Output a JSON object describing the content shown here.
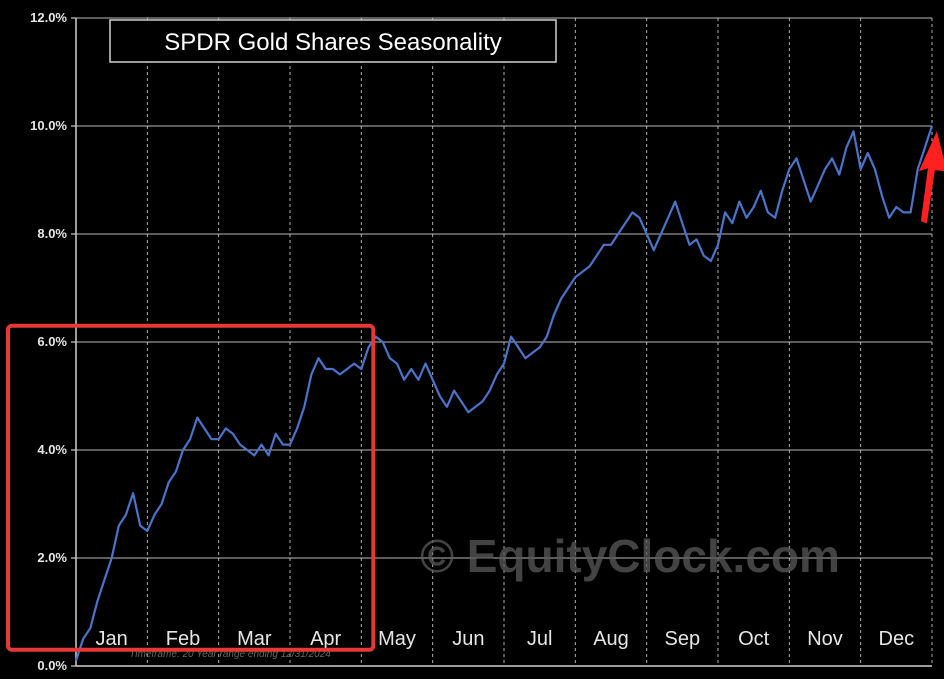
{
  "chart_data": {
    "type": "line",
    "title": "SPDR Gold Shares Seasonality",
    "watermark": "© EquityClock.com",
    "footer_note": "Timeframe: 20 Year range ending 12/31/2024",
    "colors": {
      "line": "#4a73c9",
      "highlight": "#e53935",
      "arrow": "#ff2020",
      "grid": "#cfcfcf",
      "background": "#000000"
    },
    "grid": true,
    "ylim": [
      0,
      12
    ],
    "y_ticks": [
      {
        "value": 0,
        "label": "0.0%"
      },
      {
        "value": 2,
        "label": "2.0%"
      },
      {
        "value": 4,
        "label": "4.0%"
      },
      {
        "value": 6,
        "label": "6.0%"
      },
      {
        "value": 8,
        "label": "8.0%"
      },
      {
        "value": 10,
        "label": "10.0%"
      },
      {
        "value": 12,
        "label": "12.0%"
      }
    ],
    "months": [
      "Jan",
      "Feb",
      "Mar",
      "Apr",
      "May",
      "Jun",
      "Jul",
      "Aug",
      "Sep",
      "Oct",
      "Nov",
      "Dec"
    ],
    "highlight_range": {
      "x_start": 0,
      "x_end": 4,
      "y_start": 0.3,
      "y_end": 6.3
    },
    "arrow": {
      "x": 11.9,
      "y": 8.7
    },
    "series": [
      {
        "points": [
          [
            0.0,
            0.1
          ],
          [
            0.1,
            0.5
          ],
          [
            0.2,
            0.7
          ],
          [
            0.3,
            1.2
          ],
          [
            0.4,
            1.6
          ],
          [
            0.5,
            2.0
          ],
          [
            0.6,
            2.6
          ],
          [
            0.7,
            2.8
          ],
          [
            0.8,
            3.2
          ],
          [
            0.9,
            2.6
          ],
          [
            1.0,
            2.5
          ],
          [
            1.1,
            2.8
          ],
          [
            1.2,
            3.0
          ],
          [
            1.3,
            3.4
          ],
          [
            1.4,
            3.6
          ],
          [
            1.5,
            4.0
          ],
          [
            1.6,
            4.2
          ],
          [
            1.7,
            4.6
          ],
          [
            1.8,
            4.4
          ],
          [
            1.9,
            4.2
          ],
          [
            2.0,
            4.2
          ],
          [
            2.1,
            4.4
          ],
          [
            2.2,
            4.3
          ],
          [
            2.3,
            4.1
          ],
          [
            2.4,
            4.0
          ],
          [
            2.5,
            3.9
          ],
          [
            2.6,
            4.1
          ],
          [
            2.7,
            3.9
          ],
          [
            2.8,
            4.3
          ],
          [
            2.9,
            4.1
          ],
          [
            3.0,
            4.1
          ],
          [
            3.1,
            4.4
          ],
          [
            3.2,
            4.8
          ],
          [
            3.3,
            5.4
          ],
          [
            3.4,
            5.7
          ],
          [
            3.5,
            5.5
          ],
          [
            3.6,
            5.5
          ],
          [
            3.7,
            5.4
          ],
          [
            3.8,
            5.5
          ],
          [
            3.9,
            5.6
          ],
          [
            4.0,
            5.5
          ],
          [
            4.1,
            5.9
          ],
          [
            4.2,
            6.1
          ],
          [
            4.3,
            6.0
          ],
          [
            4.4,
            5.7
          ],
          [
            4.5,
            5.6
          ],
          [
            4.6,
            5.3
          ],
          [
            4.7,
            5.5
          ],
          [
            4.8,
            5.3
          ],
          [
            4.9,
            5.6
          ],
          [
            5.0,
            5.3
          ],
          [
            5.1,
            5.0
          ],
          [
            5.2,
            4.8
          ],
          [
            5.3,
            5.1
          ],
          [
            5.4,
            4.9
          ],
          [
            5.5,
            4.7
          ],
          [
            5.6,
            4.8
          ],
          [
            5.7,
            4.9
          ],
          [
            5.8,
            5.1
          ],
          [
            5.9,
            5.4
          ],
          [
            6.0,
            5.6
          ],
          [
            6.1,
            6.1
          ],
          [
            6.2,
            5.9
          ],
          [
            6.3,
            5.7
          ],
          [
            6.4,
            5.8
          ],
          [
            6.5,
            5.9
          ],
          [
            6.6,
            6.1
          ],
          [
            6.7,
            6.5
          ],
          [
            6.8,
            6.8
          ],
          [
            6.9,
            7.0
          ],
          [
            7.0,
            7.2
          ],
          [
            7.1,
            7.3
          ],
          [
            7.2,
            7.4
          ],
          [
            7.3,
            7.6
          ],
          [
            7.4,
            7.8
          ],
          [
            7.5,
            7.8
          ],
          [
            7.6,
            8.0
          ],
          [
            7.7,
            8.2
          ],
          [
            7.8,
            8.4
          ],
          [
            7.9,
            8.3
          ],
          [
            8.0,
            8.0
          ],
          [
            8.1,
            7.7
          ],
          [
            8.2,
            8.0
          ],
          [
            8.3,
            8.3
          ],
          [
            8.4,
            8.6
          ],
          [
            8.5,
            8.2
          ],
          [
            8.6,
            7.8
          ],
          [
            8.7,
            7.9
          ],
          [
            8.8,
            7.6
          ],
          [
            8.9,
            7.5
          ],
          [
            9.0,
            7.8
          ],
          [
            9.1,
            8.4
          ],
          [
            9.2,
            8.2
          ],
          [
            9.3,
            8.6
          ],
          [
            9.4,
            8.3
          ],
          [
            9.5,
            8.5
          ],
          [
            9.6,
            8.8
          ],
          [
            9.7,
            8.4
          ],
          [
            9.8,
            8.3
          ],
          [
            9.9,
            8.8
          ],
          [
            10.0,
            9.2
          ],
          [
            10.1,
            9.4
          ],
          [
            10.2,
            9.0
          ],
          [
            10.3,
            8.6
          ],
          [
            10.4,
            8.9
          ],
          [
            10.5,
            9.2
          ],
          [
            10.6,
            9.4
          ],
          [
            10.7,
            9.1
          ],
          [
            10.8,
            9.6
          ],
          [
            10.9,
            9.9
          ],
          [
            11.0,
            9.2
          ],
          [
            11.1,
            9.5
          ],
          [
            11.2,
            9.2
          ],
          [
            11.3,
            8.7
          ],
          [
            11.4,
            8.3
          ],
          [
            11.5,
            8.5
          ],
          [
            11.6,
            8.4
          ],
          [
            11.7,
            8.4
          ],
          [
            11.8,
            9.2
          ],
          [
            11.9,
            9.6
          ],
          [
            11.95,
            9.8
          ],
          [
            12.0,
            10.0
          ]
        ]
      }
    ]
  }
}
